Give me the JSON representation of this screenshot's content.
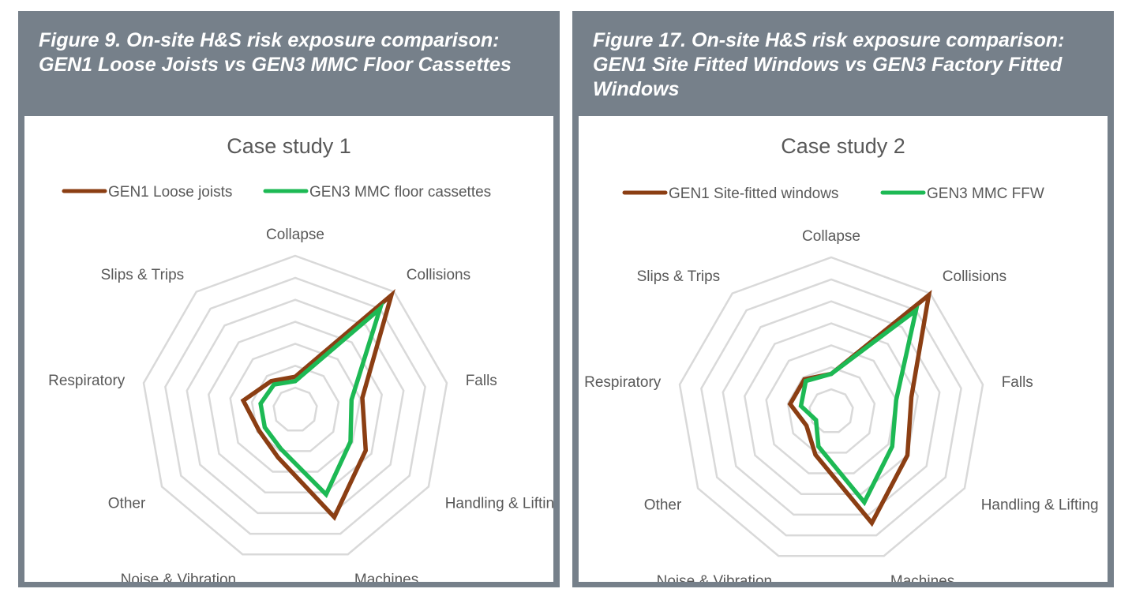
{
  "figures": [
    {
      "caption": "Figure 9. On-site H&S risk exposure comparison: GEN1 Loose Joists vs GEN3 MMC Floor Cassettes",
      "chart_data": {
        "type": "radar",
        "title": "Case study 1",
        "categories": [
          "Collapse",
          "Collisions",
          "Falls",
          "Handling & Lifting",
          "Machines",
          "Noise & Vibration",
          "Other",
          "Respiratory",
          "Slips & Trips"
        ],
        "rmax": 7,
        "grid": true,
        "legend_position": "top",
        "series": [
          {
            "name": "GEN1 Loose joists",
            "color": "#8b3e13",
            "values": [
              1.5,
              6.8,
              3.1,
              3.7,
              5.2,
              2.3,
              1.9,
              2.4,
              1.7
            ]
          },
          {
            "name": "GEN3 MMC floor cassettes",
            "color": "#1db954",
            "values": [
              1.3,
              6.0,
              2.6,
              2.9,
              4.1,
              1.9,
              1.6,
              1.6,
              1.5
            ]
          }
        ]
      }
    },
    {
      "caption": "Figure 17. On-site H&S risk exposure comparison: GEN1 Site Fitted Windows vs GEN3 Factory Fitted Windows",
      "chart_data": {
        "type": "radar",
        "title": "Case study 2",
        "categories": [
          "Collapse",
          "Collisions",
          "Falls",
          "Handling & Lifting",
          "Machines",
          "Noise & Vibration",
          "Other",
          "Respiratory",
          "Slips & Trips"
        ],
        "rmax": 7,
        "grid": true,
        "legend_position": "top",
        "series": [
          {
            "name": "GEN1 Site-fitted windows",
            "color": "#8b3e13",
            "values": [
              1.7,
              6.9,
              3.7,
              4.0,
              5.4,
              2.1,
              1.3,
              1.9,
              1.9
            ]
          },
          {
            "name": "GEN3 MMC FFW",
            "color": "#1db954",
            "values": [
              1.7,
              6.0,
              3.0,
              3.2,
              4.4,
              1.7,
              0.8,
              1.4,
              1.8
            ]
          }
        ]
      }
    }
  ]
}
